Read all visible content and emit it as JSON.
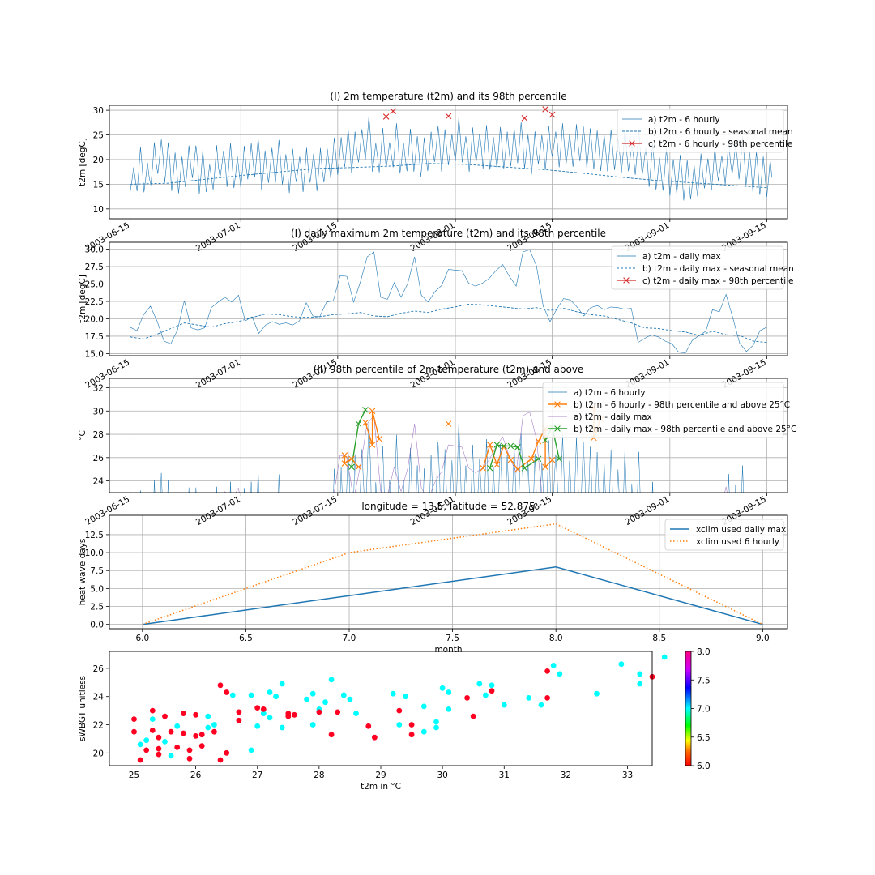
{
  "chart_data": [
    {
      "type": "line",
      "title": "(I) 2m temperature (t2m) and its 98th percentile",
      "ylabel": "t2m [degC]",
      "xlabel": "",
      "date_range": [
        "2003-06-15",
        "2003-09-15"
      ],
      "xlim": [
        "2003-06-12",
        "2003-09-18"
      ],
      "ylim": [
        8,
        31
      ],
      "yticks": [
        "10",
        "15",
        "20",
        "25",
        "30"
      ],
      "xticks": [
        "2003-06-15",
        "2003-07-01",
        "2003-07-15",
        "2003-08-01",
        "2003-08-15",
        "2003-09-01",
        "2003-09-15"
      ],
      "grid": true,
      "legend_position": "top-right",
      "legend": [
        "a) t2m - 6 hourly",
        "b) t2m - 6 hourly - seasonal mean",
        "c) t2m - 6 hourly - 98th percentile"
      ],
      "series_6h_daily_means": [
        15.2,
        16.8,
        15.5,
        17.9,
        19.6,
        18.2,
        16.4,
        15.8,
        17.4,
        18.6,
        16.2,
        15.4,
        17.1,
        18.3,
        17.6,
        16.5,
        17.3,
        18.6,
        19.2,
        16.6,
        17.8,
        18.4,
        17.1,
        16.4,
        17.3,
        16.6,
        17.4,
        16.7,
        17.8,
        19.1,
        19.6,
        21.2,
        20.3,
        21.8,
        23.1,
        19.6,
        20.6,
        20.1,
        21.6,
        19.4,
        20.7,
        20.1,
        19.3,
        20.5,
        22.1,
        20.6,
        21.1,
        22.8,
        21.3,
        20.7,
        21.6,
        21.3,
        20.3,
        21.2,
        20.8,
        21.4,
        22.2,
        20.6,
        20.1,
        21.2,
        21.1,
        22.4,
        21.6,
        21.2,
        21.6,
        22.2,
        21.1,
        20.8,
        20.3,
        20.6,
        20.2,
        20.4,
        19.6,
        20.1,
        18.8,
        17.6,
        16.2,
        16.7,
        15.3,
        15.9,
        14.6,
        14.4,
        15.6,
        16.3,
        16.9,
        17.5,
        18.2,
        19.2,
        19.1,
        17.2,
        16.3,
        15.6,
        15.1
      ],
      "seasonal_mean": [
        15,
        15.2,
        16,
        16.8,
        17.5,
        18.2,
        18.4,
        18.7,
        19.2,
        19,
        18.5,
        18,
        17.3,
        16.5,
        15.8,
        15.3,
        14.8,
        14.3
      ],
      "percentile_markers": [
        {
          "x": "2003-07-22",
          "y": 28.7
        },
        {
          "x": "2003-07-23",
          "y": 29.8
        },
        {
          "x": "2003-07-31",
          "y": 28.8
        },
        {
          "x": "2003-08-11",
          "y": 28.4
        },
        {
          "x": "2003-08-14",
          "y": 30.2
        },
        {
          "x": "2003-08-15",
          "y": 29.1
        }
      ]
    },
    {
      "type": "line",
      "title": "(I) daily maximum 2m temperature (t2m) and its 98th percentile",
      "ylabel": "t2m [degC]",
      "xlabel": "",
      "date_range": [
        "2003-06-15",
        "2003-09-15"
      ],
      "xlim": [
        "2003-06-12",
        "2003-09-18"
      ],
      "ylim": [
        14.7,
        31
      ],
      "yticks": [
        "15.0",
        "17.5",
        "20.0",
        "22.5",
        "25.0",
        "27.5",
        "30.0"
      ],
      "xticks": [
        "2003-06-15",
        "2003-07-01",
        "2003-07-15",
        "2003-08-01",
        "2003-08-15",
        "2003-09-01",
        "2003-09-15"
      ],
      "grid": true,
      "legend_position": "top-right",
      "legend": [
        "a) t2m - daily max",
        "b) t2m - daily max - seasonal mean",
        "c) t2m - daily max - 98th percentile"
      ],
      "daily_max": [
        18.8,
        18.3,
        20.6,
        21.8,
        19.6,
        16.8,
        16.4,
        18.4,
        22.6,
        18.7,
        18.4,
        18.7,
        21.6,
        22.4,
        23.1,
        22.4,
        23.4,
        19.7,
        20.3,
        17.9,
        19.1,
        19.6,
        19.2,
        19.4,
        19.1,
        19.7,
        22.3,
        20.4,
        20.3,
        22.4,
        22.6,
        26.2,
        26.1,
        22.4,
        25.3,
        28.9,
        29.6,
        23.1,
        22.8,
        25.2,
        23.1,
        25.1,
        28.9,
        23.4,
        22.4,
        23.9,
        24.8,
        27.1,
        27.0,
        26.9,
        25.1,
        24.7,
        25.1,
        25.8,
        26.9,
        27.8,
        26.1,
        24.7,
        29.6,
        29.9,
        27.6,
        21.8,
        19.6,
        21.4,
        22.9,
        22.7,
        21.7,
        20.4,
        21.6,
        21.9,
        21.3,
        21.7,
        21.6,
        21.4,
        21.5,
        16.6,
        17.2,
        17.7,
        17.4,
        16.8,
        16.4,
        15.2,
        15.1,
        16.9,
        17.6,
        18.2,
        21.3,
        21.0,
        23.5,
        20.1,
        16.5,
        15.3,
        16.2,
        18.3,
        18.8
      ],
      "seasonal_mean": [
        17.4,
        17.1,
        17.8,
        18.6,
        19.4,
        19.1,
        18.8,
        19.3,
        19.6,
        20.2,
        20.7,
        20.6,
        20.3,
        20.2,
        20.3,
        20.6,
        20.7,
        20.9,
        20.4,
        20.3,
        20.8,
        21.1,
        20.9,
        21.4,
        21.7,
        22.1,
        22.0,
        21.8,
        21.6,
        21.4,
        21.6,
        21.2,
        21.5,
        21.0,
        20.6,
        20.4,
        19.9,
        19.4,
        18.7,
        18.6,
        18.3,
        18.1,
        17.6,
        18.2,
        17.7,
        17.6,
        16.8,
        16.6
      ]
    },
    {
      "type": "line",
      "title": "(II) 98th percentile of 2m temperature (t2m) and above",
      "ylabel": "°C",
      "xlabel": "",
      "date_range": [
        "2003-06-15",
        "2003-09-15"
      ],
      "xlim": [
        "2003-06-12",
        "2003-09-18"
      ],
      "ylim": [
        23,
        32.8
      ],
      "yticks": [
        "24",
        "26",
        "28",
        "30",
        "32"
      ],
      "xticks": [
        "2003-06-15",
        "2003-07-01",
        "2003-07-15",
        "2003-08-01",
        "2003-08-15",
        "2003-09-01",
        "2003-09-15"
      ],
      "grid": true,
      "legend_position": "top-right",
      "legend": [
        "a) t2m - 6 hourly",
        "b) t2m - 6 hourly - 98th percentile and above 25°C",
        "a) t2m - daily max",
        "b) t2m - daily max - 98th percentile and above 25°C"
      ],
      "above_6h": [
        {
          "x": "2003-07-16",
          "y": 26.2
        },
        {
          "x": "2003-07-16",
          "y": 25.5
        },
        {
          "x": "2003-07-17",
          "y": 25.9
        },
        {
          "x": "2003-07-18",
          "y": 25.2
        },
        {
          "x": "2003-07-19",
          "y": 29.0
        },
        {
          "x": "2003-07-20",
          "y": 27.1
        },
        {
          "x": "2003-07-20",
          "y": 30.0
        },
        {
          "x": "2003-07-21",
          "y": 27.6
        },
        {
          "x": "2003-07-31",
          "y": 28.9
        },
        {
          "x": "2003-08-05",
          "y": 25.1
        },
        {
          "x": "2003-08-06",
          "y": 27.1
        },
        {
          "x": "2003-08-07",
          "y": 25.4
        },
        {
          "x": "2003-08-08",
          "y": 27.0
        },
        {
          "x": "2003-08-09",
          "y": 25.8
        },
        {
          "x": "2003-08-10",
          "y": 25.0
        },
        {
          "x": "2003-08-12",
          "y": 25.9
        },
        {
          "x": "2003-08-13",
          "y": 27.4
        },
        {
          "x": "2003-08-14",
          "y": 28.5
        },
        {
          "x": "2003-08-14",
          "y": 25.2
        },
        {
          "x": "2003-08-15",
          "y": 25.8
        },
        {
          "x": "2003-08-21",
          "y": 30.3
        },
        {
          "x": "2003-08-21",
          "y": 27.7
        },
        {
          "x": "2003-08-22",
          "y": 29.3
        }
      ],
      "above_daily_max": [
        {
          "x": "2003-07-17",
          "y": 25.2
        },
        {
          "x": "2003-07-18",
          "y": 28.9
        },
        {
          "x": "2003-07-19",
          "y": 30.1
        },
        {
          "x": "2003-08-06",
          "y": 25.1
        },
        {
          "x": "2003-08-07",
          "y": 27.1
        },
        {
          "x": "2003-08-08",
          "y": 27.0
        },
        {
          "x": "2003-08-09",
          "y": 27.0
        },
        {
          "x": "2003-08-10",
          "y": 26.9
        },
        {
          "x": "2003-08-11",
          "y": 25.1
        },
        {
          "x": "2003-08-13",
          "y": 25.9
        },
        {
          "x": "2003-08-14",
          "y": 27.5
        },
        {
          "x": "2003-08-15",
          "y": 28.6
        },
        {
          "x": "2003-08-16",
          "y": 25.9
        }
      ]
    },
    {
      "type": "line",
      "title": "longitude = 13.5, latitude = 52.875",
      "xlabel": "month",
      "ylabel": "heat wave days",
      "xlim": [
        5.84,
        9.12
      ],
      "ylim": [
        -0.6,
        15.2
      ],
      "xticks": [
        "6.0",
        "6.5",
        "7.0",
        "7.5",
        "8.0",
        "8.5",
        "9.0"
      ],
      "yticks": [
        "0.0",
        "2.5",
        "5.0",
        "7.5",
        "10.0",
        "12.5"
      ],
      "grid": true,
      "legend_position": "top-right",
      "x": [
        6,
        7,
        8,
        9
      ],
      "series": [
        {
          "name": "xclim used daily max",
          "values": [
            0,
            4,
            8,
            0
          ],
          "color": "#1f77b4",
          "style": "solid"
        },
        {
          "name": "xclim used 6 hourly",
          "values": [
            0,
            10,
            14,
            0
          ],
          "color": "#ff7f0e",
          "style": "dotted"
        }
      ]
    },
    {
      "type": "scatter",
      "title": "",
      "xlabel": "t2m in °C",
      "ylabel": "sWBGT unitless",
      "xlim": [
        24.6,
        33.4
      ],
      "ylim": [
        19.1,
        27.2
      ],
      "xticks": [
        "25",
        "26",
        "27",
        "28",
        "29",
        "30",
        "31",
        "32",
        "33"
      ],
      "yticks": [
        "20",
        "22",
        "24",
        "26"
      ],
      "colorbar": {
        "min": 6.0,
        "max": 8.0,
        "ticks": [
          "6.0",
          "6.5",
          "7.0",
          "7.5",
          "8.0"
        ],
        "colormap": "gist_rainbow-like"
      },
      "points": [
        {
          "x": 25.0,
          "y": 22.4,
          "c": 6
        },
        {
          "x": 25.0,
          "y": 21.5,
          "c": 6
        },
        {
          "x": 25.1,
          "y": 20.6,
          "c": 7
        },
        {
          "x": 25.1,
          "y": 19.5,
          "c": 6
        },
        {
          "x": 25.2,
          "y": 20.2,
          "c": 6
        },
        {
          "x": 25.2,
          "y": 20.9,
          "c": 7
        },
        {
          "x": 25.3,
          "y": 22.4,
          "c": 7
        },
        {
          "x": 25.3,
          "y": 23.0,
          "c": 6
        },
        {
          "x": 25.3,
          "y": 21.6,
          "c": 6
        },
        {
          "x": 25.4,
          "y": 20.3,
          "c": 6
        },
        {
          "x": 25.4,
          "y": 19.9,
          "c": 6
        },
        {
          "x": 25.4,
          "y": 21.1,
          "c": 6
        },
        {
          "x": 25.5,
          "y": 22.6,
          "c": 6
        },
        {
          "x": 25.5,
          "y": 20.8,
          "c": 7
        },
        {
          "x": 25.6,
          "y": 21.5,
          "c": 6
        },
        {
          "x": 25.6,
          "y": 19.8,
          "c": 7
        },
        {
          "x": 25.7,
          "y": 21.9,
          "c": 7
        },
        {
          "x": 25.7,
          "y": 20.4,
          "c": 6
        },
        {
          "x": 25.8,
          "y": 22.8,
          "c": 6
        },
        {
          "x": 25.8,
          "y": 21.4,
          "c": 6
        },
        {
          "x": 25.9,
          "y": 20.2,
          "c": 6
        },
        {
          "x": 25.9,
          "y": 19.6,
          "c": 6
        },
        {
          "x": 26.0,
          "y": 22.7,
          "c": 6
        },
        {
          "x": 26.0,
          "y": 21.2,
          "c": 6
        },
        {
          "x": 26.1,
          "y": 20.5,
          "c": 6
        },
        {
          "x": 26.1,
          "y": 21.3,
          "c": 6
        },
        {
          "x": 26.2,
          "y": 22.6,
          "c": 7
        },
        {
          "x": 26.2,
          "y": 21.8,
          "c": 7
        },
        {
          "x": 26.3,
          "y": 22.0,
          "c": 7
        },
        {
          "x": 26.3,
          "y": 21.5,
          "c": 6
        },
        {
          "x": 26.4,
          "y": 24.8,
          "c": 6
        },
        {
          "x": 26.4,
          "y": 19.5,
          "c": 6
        },
        {
          "x": 26.5,
          "y": 24.3,
          "c": 6
        },
        {
          "x": 26.5,
          "y": 20.0,
          "c": 6
        },
        {
          "x": 26.6,
          "y": 24.1,
          "c": 7
        },
        {
          "x": 26.7,
          "y": 22.9,
          "c": 6
        },
        {
          "x": 26.7,
          "y": 22.3,
          "c": 6
        },
        {
          "x": 26.9,
          "y": 24.1,
          "c": 7
        },
        {
          "x": 26.9,
          "y": 20.2,
          "c": 7
        },
        {
          "x": 27.0,
          "y": 23.2,
          "c": 6
        },
        {
          "x": 27.0,
          "y": 21.9,
          "c": 7
        },
        {
          "x": 27.1,
          "y": 22.8,
          "c": 7
        },
        {
          "x": 27.1,
          "y": 23.1,
          "c": 6
        },
        {
          "x": 27.2,
          "y": 24.3,
          "c": 7
        },
        {
          "x": 27.2,
          "y": 22.5,
          "c": 7
        },
        {
          "x": 27.3,
          "y": 24.0,
          "c": 7
        },
        {
          "x": 27.4,
          "y": 21.8,
          "c": 7
        },
        {
          "x": 27.4,
          "y": 24.9,
          "c": 7
        },
        {
          "x": 27.5,
          "y": 22.8,
          "c": 6
        },
        {
          "x": 27.5,
          "y": 22.6,
          "c": 6
        },
        {
          "x": 27.6,
          "y": 22.7,
          "c": 6
        },
        {
          "x": 27.8,
          "y": 23.8,
          "c": 7
        },
        {
          "x": 27.9,
          "y": 24.2,
          "c": 7
        },
        {
          "x": 27.9,
          "y": 22.0,
          "c": 7
        },
        {
          "x": 28.0,
          "y": 23.1,
          "c": 7
        },
        {
          "x": 28.0,
          "y": 22.9,
          "c": 6
        },
        {
          "x": 28.1,
          "y": 23.6,
          "c": 7
        },
        {
          "x": 28.2,
          "y": 25.2,
          "c": 7
        },
        {
          "x": 28.2,
          "y": 21.3,
          "c": 6
        },
        {
          "x": 28.3,
          "y": 22.9,
          "c": 6
        },
        {
          "x": 28.4,
          "y": 24.1,
          "c": 7
        },
        {
          "x": 28.4,
          "y": 24.1,
          "c": 7
        },
        {
          "x": 28.5,
          "y": 23.8,
          "c": 7
        },
        {
          "x": 28.6,
          "y": 22.8,
          "c": 7
        },
        {
          "x": 28.8,
          "y": 21.9,
          "c": 6
        },
        {
          "x": 28.9,
          "y": 21.1,
          "c": 6
        },
        {
          "x": 29.2,
          "y": 24.2,
          "c": 7
        },
        {
          "x": 29.3,
          "y": 23.0,
          "c": 6
        },
        {
          "x": 29.3,
          "y": 22.0,
          "c": 7
        },
        {
          "x": 29.4,
          "y": 24.0,
          "c": 7
        },
        {
          "x": 29.5,
          "y": 21.3,
          "c": 6
        },
        {
          "x": 29.5,
          "y": 22.0,
          "c": 6
        },
        {
          "x": 29.7,
          "y": 21.5,
          "c": 7
        },
        {
          "x": 29.7,
          "y": 23.3,
          "c": 7
        },
        {
          "x": 29.9,
          "y": 21.8,
          "c": 7
        },
        {
          "x": 29.9,
          "y": 22.2,
          "c": 7
        },
        {
          "x": 30.0,
          "y": 24.6,
          "c": 7
        },
        {
          "x": 30.1,
          "y": 23.1,
          "c": 7
        },
        {
          "x": 30.1,
          "y": 24.3,
          "c": 7
        },
        {
          "x": 30.4,
          "y": 23.9,
          "c": 6
        },
        {
          "x": 30.5,
          "y": 22.6,
          "c": 6
        },
        {
          "x": 30.6,
          "y": 24.9,
          "c": 7
        },
        {
          "x": 30.6,
          "y": 24.9,
          "c": 7
        },
        {
          "x": 30.7,
          "y": 24.1,
          "c": 7
        },
        {
          "x": 30.8,
          "y": 24.8,
          "c": 7
        },
        {
          "x": 30.8,
          "y": 24.4,
          "c": 6
        },
        {
          "x": 31.0,
          "y": 23.4,
          "c": 7
        },
        {
          "x": 31.4,
          "y": 23.9,
          "c": 7
        },
        {
          "x": 31.6,
          "y": 23.4,
          "c": 7
        },
        {
          "x": 31.7,
          "y": 25.8,
          "c": 6
        },
        {
          "x": 31.7,
          "y": 23.9,
          "c": 6
        },
        {
          "x": 31.8,
          "y": 26.2,
          "c": 7
        },
        {
          "x": 31.9,
          "y": 25.6,
          "c": 7
        },
        {
          "x": 32.5,
          "y": 24.2,
          "c": 7
        },
        {
          "x": 32.9,
          "y": 26.3,
          "c": 7
        },
        {
          "x": 33.2,
          "y": 25.6,
          "c": 7
        },
        {
          "x": 33.2,
          "y": 24.9,
          "c": 7
        },
        {
          "x": 33.4,
          "y": 25.4,
          "c": 6
        },
        {
          "x": 33.6,
          "y": 26.8,
          "c": 7
        }
      ]
    }
  ]
}
